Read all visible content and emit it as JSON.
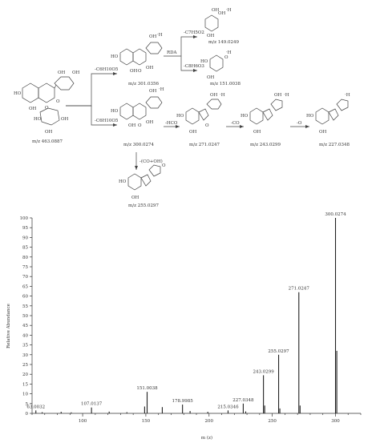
{
  "scheme": {
    "parent_label": "m/z 463.0887",
    "loss_c6h10o5_a": "-C6H10O5",
    "loss_c6h10o5_b": "-C6H10O5",
    "mz_301": "m/z 301.0356",
    "mz_300": "m/z 300.0274",
    "rda": "RDA",
    "loss_c7h5o2": "-C7H5O2",
    "loss_c8h6o3": "-C8H6O3",
    "mz_149": "m/z 149.0249",
    "mz_151": "m/z 151.0038",
    "loss_hco": "-HCO",
    "mz_271": "m/z 271.0247",
    "loss_co": "-CO",
    "mz_243": "m/z 243.0299",
    "loss_o": "-O",
    "mz_227": "m/z 227.0348",
    "loss_co_oh": "-(CO+OH)",
    "mz_255": "m/z 255.0297",
    "h_bracket": "·H"
  },
  "chart_data": {
    "type": "bar",
    "xlabel": "m (z)",
    "ylabel": "Relative Abundance",
    "xlim": [
      60,
      320
    ],
    "ylim": [
      0,
      100
    ],
    "xticks": [
      100,
      150,
      200,
      250,
      300
    ],
    "yticks": [
      0,
      5,
      10,
      15,
      20,
      25,
      30,
      35,
      40,
      45,
      50,
      55,
      60,
      65,
      70,
      75,
      80,
      85,
      90,
      95,
      100
    ],
    "peaks": [
      {
        "mz": 63.0032,
        "intensity": 1.5,
        "label": "63.0032"
      },
      {
        "mz": 68.0,
        "intensity": 0.6,
        "label": ""
      },
      {
        "mz": 83.0,
        "intensity": 0.8,
        "label": ""
      },
      {
        "mz": 91.0,
        "intensity": 0.5,
        "label": ""
      },
      {
        "mz": 107.0137,
        "intensity": 3.0,
        "label": "107.0137"
      },
      {
        "mz": 121.0,
        "intensity": 0.9,
        "label": ""
      },
      {
        "mz": 135.0,
        "intensity": 0.6,
        "label": ""
      },
      {
        "mz": 149.0249,
        "intensity": 3.5,
        "label": ""
      },
      {
        "mz": 151.0038,
        "intensity": 11.0,
        "label": "151.0038"
      },
      {
        "mz": 163.0,
        "intensity": 3.2,
        "label": ""
      },
      {
        "mz": 178.9985,
        "intensity": 4.5,
        "label": "178.9985"
      },
      {
        "mz": 185.0,
        "intensity": 1.2,
        "label": ""
      },
      {
        "mz": 199.0,
        "intensity": 0.8,
        "label": ""
      },
      {
        "mz": 215.0346,
        "intensity": 1.5,
        "label": "215.0346"
      },
      {
        "mz": 227.0348,
        "intensity": 5.0,
        "label": "227.0348"
      },
      {
        "mz": 229.0,
        "intensity": 1.0,
        "label": ""
      },
      {
        "mz": 243.0299,
        "intensity": 19.5,
        "label": "243.0299"
      },
      {
        "mz": 244.0,
        "intensity": 4.0,
        "label": ""
      },
      {
        "mz": 255.0297,
        "intensity": 30.0,
        "label": "255.0297"
      },
      {
        "mz": 256.0,
        "intensity": 2.5,
        "label": ""
      },
      {
        "mz": 271.0247,
        "intensity": 62.0,
        "label": "271.0247"
      },
      {
        "mz": 272.0,
        "intensity": 4.0,
        "label": ""
      },
      {
        "mz": 300.0274,
        "intensity": 100.0,
        "label": "300.0274"
      },
      {
        "mz": 301.0356,
        "intensity": 32.0,
        "label": ""
      }
    ]
  }
}
